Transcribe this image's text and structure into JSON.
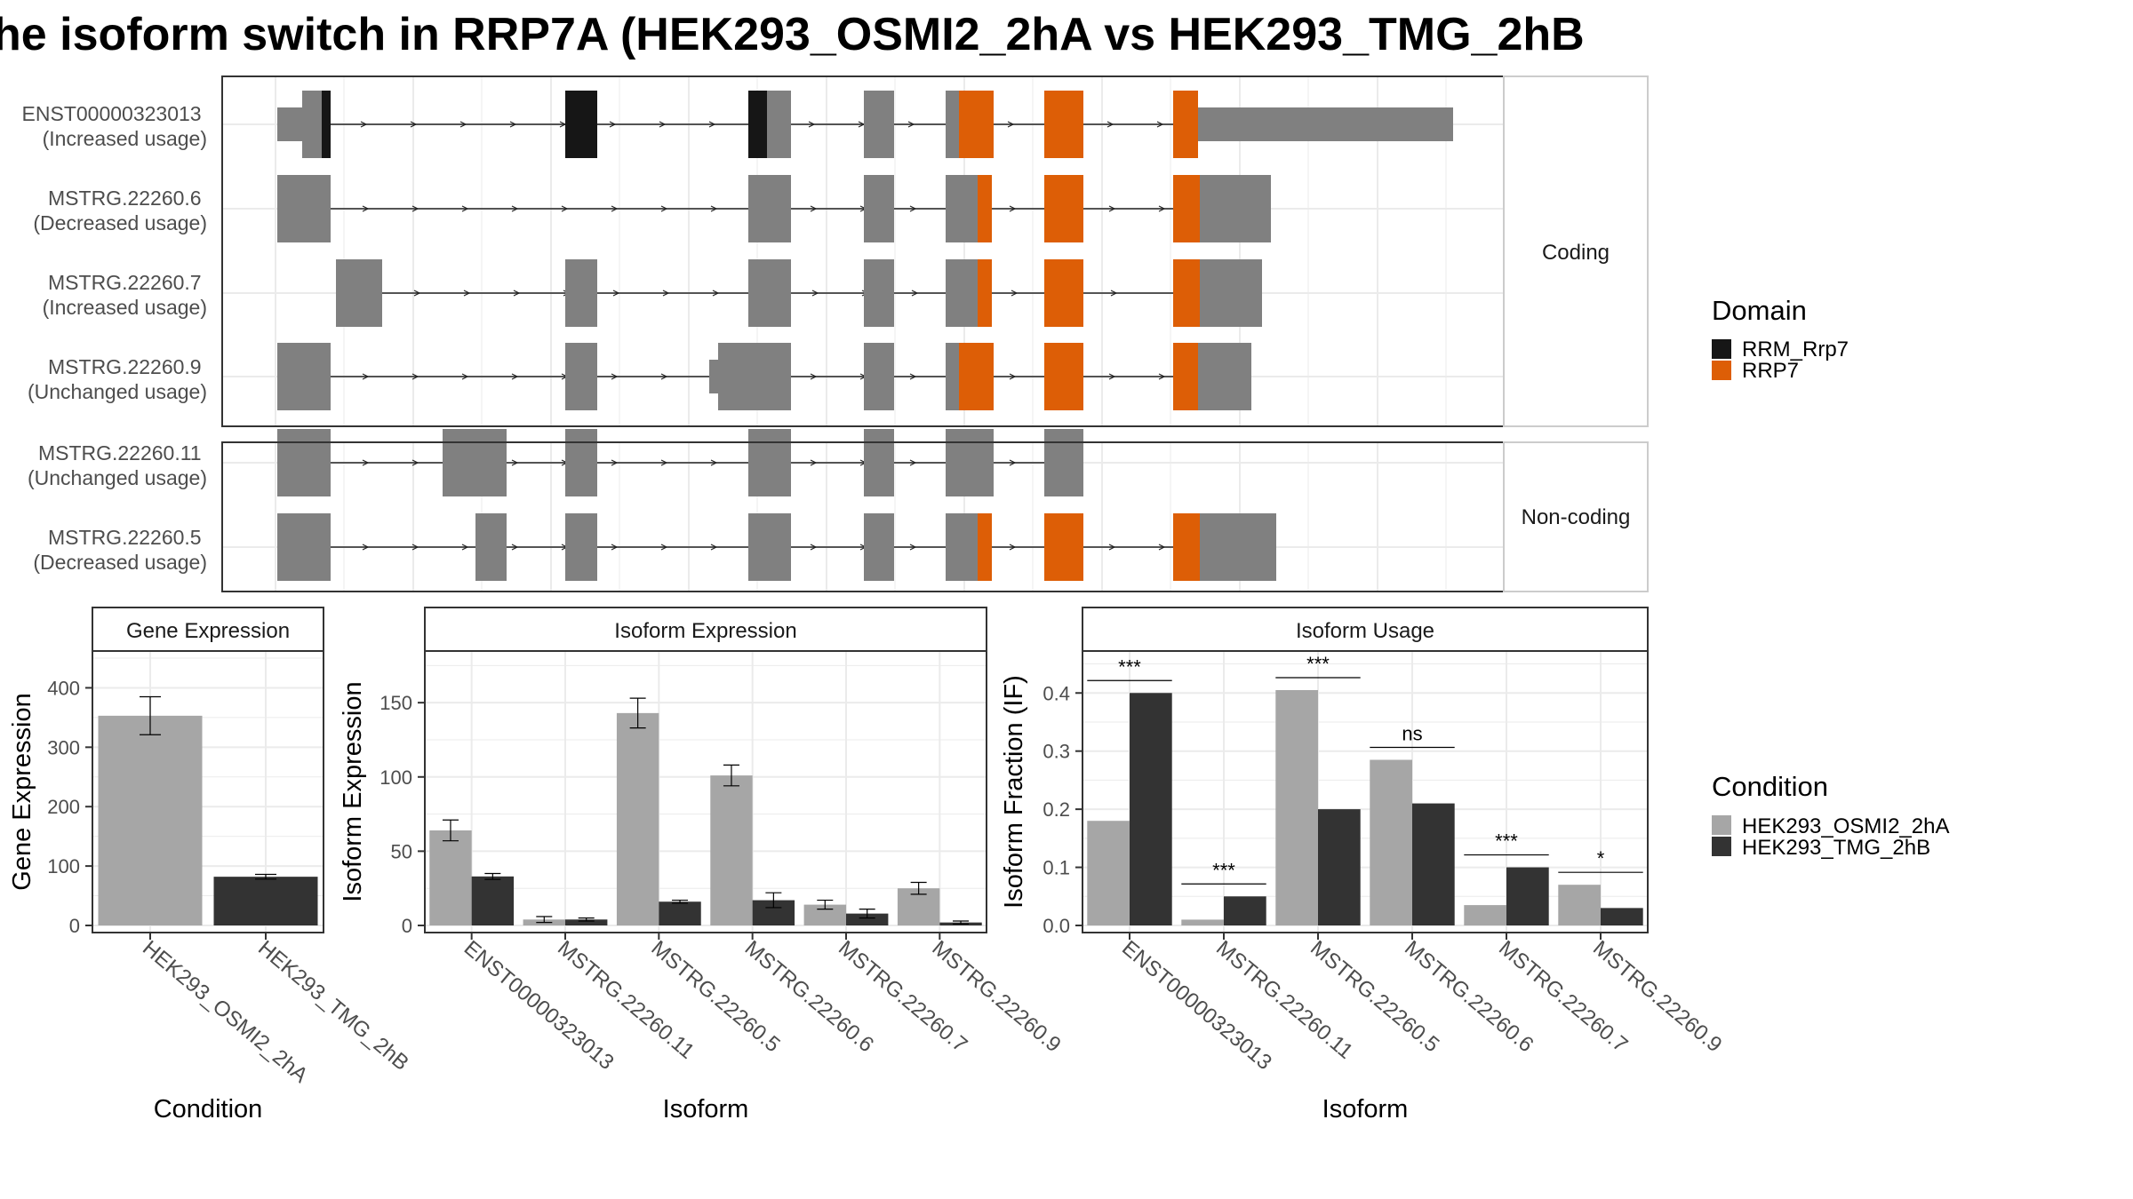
{
  "title": "he isoform switch in RRP7A (HEK293_OSMI2_2hA vs HEK293_TMG_2hB",
  "colors": {
    "exon": "#808080",
    "rrm_rrp7": "#161616",
    "rrp7": "#DD5E06",
    "cond_a": "#A6A6A6",
    "cond_b": "#333333",
    "strip_bg": "#FFFFFF",
    "grid": "#EBEBEB"
  },
  "structure": {
    "coding_strip": "Coding",
    "noncoding_strip": "Non-coding",
    "transcripts": [
      {
        "id": "ENST00000323013",
        "status": "(Increased usage)"
      },
      {
        "id": "MSTRG.22260.6",
        "status": "(Decreased usage)"
      },
      {
        "id": "MSTRG.22260.7",
        "status": "(Increased usage)"
      },
      {
        "id": "MSTRG.22260.9",
        "status": "(Unchanged usage)"
      },
      {
        "id": "MSTRG.22260.11",
        "status": "(Unchanged usage)"
      },
      {
        "id": "MSTRG.22260.5",
        "status": "(Decreased usage)"
      }
    ]
  },
  "domain_legend": {
    "title": "Domain",
    "items": [
      {
        "label": "RRM_Rrp7",
        "color": "#161616"
      },
      {
        "label": "RRP7",
        "color": "#DD5E06"
      }
    ]
  },
  "condition_legend": {
    "title": "Condition",
    "items": [
      {
        "label": "HEK293_OSMI2_2hA",
        "color": "#A6A6A6"
      },
      {
        "label": "HEK293_TMG_2hB",
        "color": "#333333"
      }
    ]
  },
  "chart_data": [
    {
      "type": "bar",
      "strip": "Gene Expression",
      "xlabel": "Condition",
      "ylabel": "Gene Expression",
      "ylim": [
        0,
        450
      ],
      "yticks": [
        0,
        100,
        200,
        300,
        400
      ],
      "categories": [
        "HEK293_OSMI2_2hA",
        "HEK293_TMG_2hB"
      ],
      "values": [
        353,
        82
      ],
      "errors": [
        32,
        4
      ]
    },
    {
      "type": "bar",
      "strip": "Isoform Expression",
      "xlabel": "Isoform",
      "ylabel": "Isoform Expression",
      "ylim": [
        0,
        180
      ],
      "yticks": [
        0,
        50,
        100,
        150
      ],
      "categories": [
        "ENST00000323013",
        "MSTRG.22260.11",
        "MSTRG.22260.5",
        "MSTRG.22260.6",
        "MSTRG.22260.7",
        "MSTRG.22260.9"
      ],
      "series": [
        {
          "name": "HEK293_OSMI2_2hA",
          "values": [
            64,
            4,
            143,
            101,
            14,
            25
          ],
          "errors": [
            7,
            2,
            10,
            7,
            3,
            4
          ]
        },
        {
          "name": "HEK293_TMG_2hB",
          "values": [
            33,
            4,
            16,
            17,
            8,
            2
          ],
          "errors": [
            2,
            1,
            1,
            5,
            3,
            1
          ]
        }
      ]
    },
    {
      "type": "bar",
      "strip": "Isoform Usage",
      "xlabel": "Isoform",
      "ylabel": "Isoform Fraction (IF)",
      "ylim": [
        0,
        0.46
      ],
      "yticks": [
        "0.0",
        "0.1",
        "0.2",
        "0.3",
        "0.4"
      ],
      "categories": [
        "ENST00000323013",
        "MSTRG.22260.11",
        "MSTRG.22260.5",
        "MSTRG.22260.6",
        "MSTRG.22260.7",
        "MSTRG.22260.9"
      ],
      "series": [
        {
          "name": "HEK293_OSMI2_2hA",
          "values": [
            0.18,
            0.01,
            0.405,
            0.285,
            0.035,
            0.07
          ]
        },
        {
          "name": "HEK293_TMG_2hB",
          "values": [
            0.4,
            0.05,
            0.2,
            0.21,
            0.1,
            0.03
          ]
        }
      ],
      "significance": [
        "***",
        "***",
        "***",
        "ns",
        "***",
        "*"
      ]
    }
  ]
}
